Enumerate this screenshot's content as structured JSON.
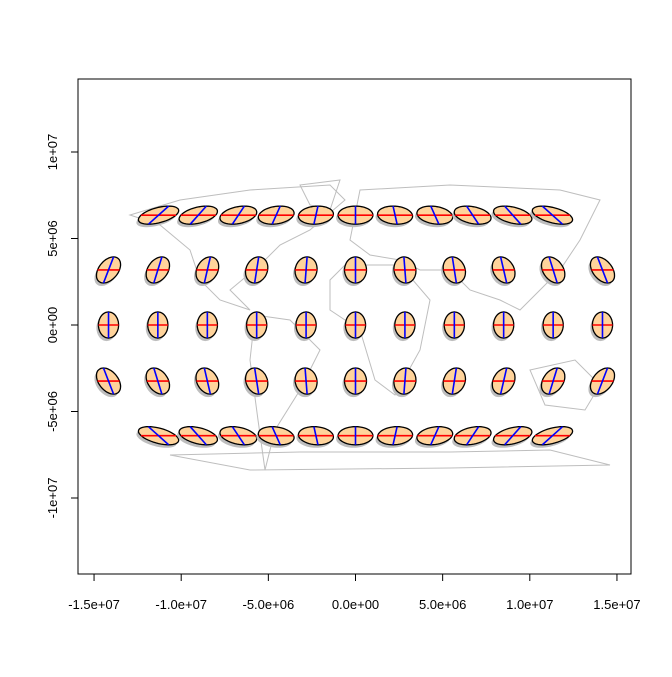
{
  "chart_data": {
    "type": "map",
    "description_kind": "Tissot indicatrices on world map",
    "xlim": [
      -15800000,
      15800000
    ],
    "ylim": [
      -14300000,
      14000000
    ],
    "x_ticks": [
      -15000000,
      -10000000,
      -5000000,
      0,
      5000000,
      10000000,
      15000000
    ],
    "x_tick_labels": [
      "-1.5e+07",
      "-1.0e+07",
      "-5.0e+06",
      "0.0e+00",
      "5.0e+06",
      "1.0e+07",
      "1.5e+07"
    ],
    "y_ticks": [
      -10000000,
      -5000000,
      0,
      5000000,
      10000000
    ],
    "y_tick_labels": [
      "-1e+07",
      "-5e+06",
      "0e+00",
      "5e+06",
      "1e+07"
    ],
    "colors": {
      "coastline": "#bebebe",
      "indicatrix_fill": "#ffd39b",
      "indicatrix_outline": "#000000",
      "shadow": "#bebebe",
      "parallel_line": "#ff0000",
      "meridian_line": "#0000ff"
    },
    "indicatrix_rows": [
      {
        "y": 6350000,
        "x": [
          -11300000,
          -9020000,
          -6720000,
          -4550000,
          -2270000,
          0,
          2270000,
          4550000,
          6720000,
          9020000,
          11300000
        ],
        "a": 1000000,
        "b": 520000,
        "shear": 580000
      },
      {
        "y": 3180000,
        "x": [
          -14170000,
          -11340000,
          -8500000,
          -5670000,
          -2835000,
          0,
          2835000,
          5670000,
          8500000,
          11340000,
          14170000
        ],
        "a": 630000,
        "b": 750000,
        "shear": 290000
      },
      {
        "y": 0,
        "x": [
          -14170000,
          -11340000,
          -8500000,
          -5670000,
          -2835000,
          0,
          2835000,
          5670000,
          8500000,
          11340000,
          14170000
        ],
        "a": 580000,
        "b": 750000,
        "shear": 0
      },
      {
        "y": -3240000,
        "x": [
          -14170000,
          -11340000,
          -8500000,
          -5670000,
          -2835000,
          0,
          2835000,
          5670000,
          8500000,
          11340000,
          14170000
        ],
        "a": 630000,
        "b": 750000,
        "shear": -290000
      },
      {
        "y": -6400000,
        "x": [
          -11300000,
          -9020000,
          -6720000,
          -4550000,
          -2270000,
          0,
          2270000,
          4550000,
          6720000,
          9020000,
          11300000
        ],
        "a": 1000000,
        "b": 520000,
        "shear": -580000
      }
    ]
  }
}
